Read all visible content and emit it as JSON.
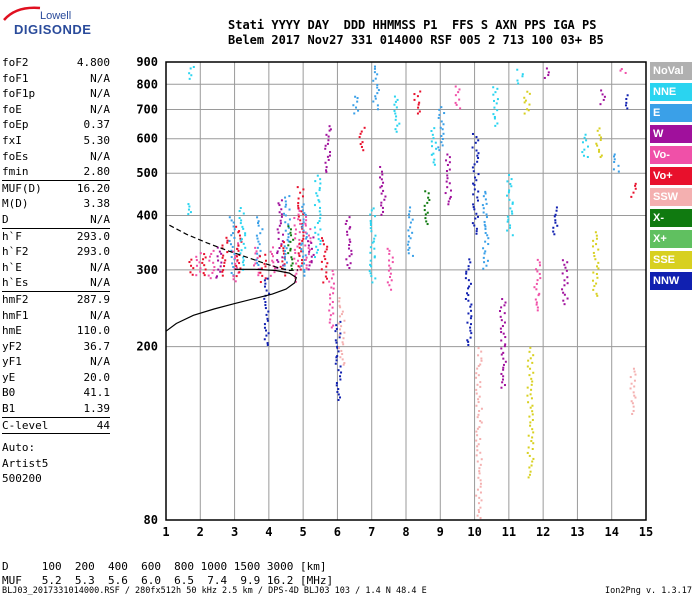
{
  "logo": {
    "line1": "Lowell",
    "line2": "DIGISONDE"
  },
  "header": {
    "line1": "Stati YYYY DAY  DDD HHMMSS P1  FFS S AXN PPS IGA PS",
    "line2": "Belem 2017 Nov27 331 014000 RSF 005 2 713 100 03+ B5"
  },
  "params": [
    {
      "name": "foF2",
      "value": "4.800"
    },
    {
      "name": "foF1",
      "value": "N/A"
    },
    {
      "name": "foF1p",
      "value": "N/A"
    },
    {
      "name": "foE",
      "value": "N/A"
    },
    {
      "name": "foEp",
      "value": "0.37"
    },
    {
      "name": "fxI",
      "value": "5.30"
    },
    {
      "name": "foEs",
      "value": "N/A"
    },
    {
      "name": "fmin",
      "value": "2.80",
      "sep": true
    },
    {
      "name": "MUF(D)",
      "value": "16.20"
    },
    {
      "name": "M(D)",
      "value": "3.38"
    },
    {
      "name": "D",
      "value": "N/A",
      "sep": true
    },
    {
      "name": "h`F",
      "value": "293.0"
    },
    {
      "name": "h`F2",
      "value": "293.0"
    },
    {
      "name": "h`E",
      "value": "N/A"
    },
    {
      "name": "h`Es",
      "value": "N/A",
      "sep": true
    },
    {
      "name": "hmF2",
      "value": "287.9"
    },
    {
      "name": "hmF1",
      "value": "N/A"
    },
    {
      "name": "hmE",
      "value": "110.0"
    },
    {
      "name": "yF2",
      "value": "36.7"
    },
    {
      "name": "yF1",
      "value": "N/A"
    },
    {
      "name": "yE",
      "value": "20.0"
    },
    {
      "name": "B0",
      "value": "41.1"
    },
    {
      "name": "B1",
      "value": "1.39",
      "sep": true
    },
    {
      "name": "C-level",
      "value": "44",
      "sep": true
    }
  ],
  "autoscaling": {
    "line1": "Auto:",
    "line2": "Artist5",
    "line3": "500200"
  },
  "muf_table": {
    "d_line": "D     100  200  400  600  800 1000 1500 3000 [km]",
    "muf_line": "MUF   5.2  5.3  5.6  6.0  6.5  7.4  9.9 16.2 [MHz]"
  },
  "footer": {
    "left": "BLJ03_2017331014000.RSF / 280fx512h 50 kHz 2.5 km / DPS-4D BLJ03 103 / 1.4 N 48.4 E",
    "right": "Ion2Png v. 1.3.17"
  },
  "legend": [
    {
      "label": "NoVal",
      "color": "#b0b0b0",
      "text_color": "#ffffff"
    },
    {
      "label": "NNE",
      "color": "#2ad4f0",
      "text_color": "#ffffff"
    },
    {
      "label": "E",
      "color": "#3aa0e8",
      "text_color": "#ffffff"
    },
    {
      "label": "W",
      "color": "#a0109c",
      "text_color": "#ffffff"
    },
    {
      "label": "Vo-",
      "color": "#f050a8",
      "text_color": "#ffffff"
    },
    {
      "label": "Vo+",
      "color": "#e8102c",
      "text_color": "#ffffff"
    },
    {
      "label": "SSW",
      "color": "#f4b0b0",
      "text_color": "#ffffff"
    },
    {
      "label": "X-",
      "color": "#107a10",
      "text_color": "#ffffff"
    },
    {
      "label": "X+",
      "color": "#60c060",
      "text_color": "#ffffff"
    },
    {
      "label": "SSE",
      "color": "#d8d020",
      "text_color": "#ffffff"
    },
    {
      "label": "NNW",
      "color": "#1020b0",
      "text_color": "#ffffff"
    }
  ],
  "chart_data": {
    "type": "scatter",
    "xlim": [
      1,
      15
    ],
    "ylim": [
      80,
      900
    ],
    "y_scale": "log",
    "x_ticks": [
      1,
      2,
      3,
      4,
      5,
      6,
      7,
      8,
      9,
      10,
      11,
      12,
      13,
      14,
      15
    ],
    "y_ticks": [
      80,
      200,
      300,
      400,
      500,
      600,
      700,
      800,
      900
    ],
    "grid": true,
    "profile": [
      {
        "x": 1.0,
        "y": 217
      },
      {
        "x": 1.3,
        "y": 226
      },
      {
        "x": 1.8,
        "y": 236
      },
      {
        "x": 2.4,
        "y": 244
      },
      {
        "x": 3.0,
        "y": 251
      },
      {
        "x": 3.6,
        "y": 258
      },
      {
        "x": 4.1,
        "y": 264
      },
      {
        "x": 4.5,
        "y": 271
      },
      {
        "x": 4.75,
        "y": 280
      },
      {
        "x": 4.8,
        "y": 288
      },
      {
        "x": 4.6,
        "y": 295
      },
      {
        "x": 4.2,
        "y": 299
      },
      {
        "x": 3.6,
        "y": 301
      },
      {
        "x": 3.0,
        "y": 301
      }
    ],
    "trace_dashed": [
      {
        "x": 1.1,
        "y": 380
      },
      {
        "x": 1.6,
        "y": 362
      },
      {
        "x": 2.2,
        "y": 346
      },
      {
        "x": 2.8,
        "y": 332
      },
      {
        "x": 3.4,
        "y": 320
      },
      {
        "x": 3.9,
        "y": 310
      },
      {
        "x": 4.3,
        "y": 303
      },
      {
        "x": 4.6,
        "y": 299
      },
      {
        "x": 4.85,
        "y": 300
      }
    ],
    "echo_clusters": [
      {
        "x": 1.7,
        "y0": 290,
        "y1": 320,
        "color": "#e8102c"
      },
      {
        "x": 1.7,
        "y0": 400,
        "y1": 430,
        "color": "#2ad4f0"
      },
      {
        "x": 1.7,
        "y0": 820,
        "y1": 890,
        "color": "#2ad4f0"
      },
      {
        "x": 1.9,
        "y0": 290,
        "y1": 330,
        "color": "#f050a8"
      },
      {
        "x": 2.1,
        "y0": 290,
        "y1": 330,
        "color": "#e8102c"
      },
      {
        "x": 2.3,
        "y0": 285,
        "y1": 335,
        "color": "#f050a8"
      },
      {
        "x": 2.5,
        "y0": 285,
        "y1": 340,
        "color": "#a0109c"
      },
      {
        "x": 2.7,
        "y0": 290,
        "y1": 360,
        "color": "#e8102c"
      },
      {
        "x": 2.9,
        "y0": 290,
        "y1": 400,
        "color": "#3aa0e8"
      },
      {
        "x": 3.0,
        "y0": 280,
        "y1": 350,
        "color": "#f050a8"
      },
      {
        "x": 3.1,
        "y0": 290,
        "y1": 380,
        "color": "#e8102c"
      },
      {
        "x": 3.2,
        "y0": 300,
        "y1": 420,
        "color": "#2ad4f0"
      },
      {
        "x": 3.6,
        "y0": 290,
        "y1": 340,
        "color": "#f050a8"
      },
      {
        "x": 3.7,
        "y0": 300,
        "y1": 400,
        "color": "#3aa0e8"
      },
      {
        "x": 3.8,
        "y0": 280,
        "y1": 330,
        "color": "#e8102c"
      },
      {
        "x": 3.9,
        "y0": 200,
        "y1": 290,
        "color": "#1020b0"
      },
      {
        "x": 4.1,
        "y0": 290,
        "y1": 340,
        "color": "#f050a8"
      },
      {
        "x": 4.3,
        "y0": 300,
        "y1": 440,
        "color": "#a0109c"
      },
      {
        "x": 4.4,
        "y0": 290,
        "y1": 350,
        "color": "#e8102c"
      },
      {
        "x": 4.5,
        "y0": 300,
        "y1": 450,
        "color": "#3aa0e8"
      },
      {
        "x": 4.6,
        "y0": 300,
        "y1": 380,
        "color": "#107a10"
      },
      {
        "x": 4.8,
        "y0": 280,
        "y1": 420,
        "color": "#f050a8"
      },
      {
        "x": 4.9,
        "y0": 300,
        "y1": 470,
        "color": "#e8102c"
      },
      {
        "x": 5.0,
        "y0": 290,
        "y1": 430,
        "color": "#3aa0e8"
      },
      {
        "x": 5.1,
        "y0": 300,
        "y1": 400,
        "color": "#f050a8"
      },
      {
        "x": 5.2,
        "y0": 300,
        "y1": 360,
        "color": "#a0109c"
      },
      {
        "x": 5.4,
        "y0": 320,
        "y1": 500,
        "color": "#2ad4f0"
      },
      {
        "x": 5.6,
        "y0": 280,
        "y1": 360,
        "color": "#e8102c"
      },
      {
        "x": 5.7,
        "y0": 500,
        "y1": 650,
        "color": "#a0109c"
      },
      {
        "x": 5.8,
        "y0": 220,
        "y1": 300,
        "color": "#f050a8"
      },
      {
        "x": 6.0,
        "y0": 150,
        "y1": 230,
        "color": "#1020b0"
      },
      {
        "x": 6.1,
        "y0": 180,
        "y1": 260,
        "color": "#f4b0b0"
      },
      {
        "x": 6.3,
        "y0": 300,
        "y1": 400,
        "color": "#a0109c"
      },
      {
        "x": 6.5,
        "y0": 680,
        "y1": 760,
        "color": "#3aa0e8"
      },
      {
        "x": 6.7,
        "y0": 560,
        "y1": 640,
        "color": "#e8102c"
      },
      {
        "x": 7.0,
        "y0": 280,
        "y1": 420,
        "color": "#2ad4f0"
      },
      {
        "x": 7.1,
        "y0": 700,
        "y1": 890,
        "color": "#3aa0e8"
      },
      {
        "x": 7.3,
        "y0": 400,
        "y1": 520,
        "color": "#a0109c"
      },
      {
        "x": 7.5,
        "y0": 270,
        "y1": 340,
        "color": "#f050a8"
      },
      {
        "x": 7.7,
        "y0": 620,
        "y1": 760,
        "color": "#2ad4f0"
      },
      {
        "x": 8.1,
        "y0": 320,
        "y1": 420,
        "color": "#3aa0e8"
      },
      {
        "x": 8.3,
        "y0": 680,
        "y1": 780,
        "color": "#e8102c"
      },
      {
        "x": 8.6,
        "y0": 380,
        "y1": 460,
        "color": "#107a10"
      },
      {
        "x": 8.8,
        "y0": 520,
        "y1": 640,
        "color": "#2ad4f0"
      },
      {
        "x": 9.0,
        "y0": 560,
        "y1": 720,
        "color": "#3aa0e8"
      },
      {
        "x": 9.2,
        "y0": 420,
        "y1": 560,
        "color": "#a0109c"
      },
      {
        "x": 9.5,
        "y0": 700,
        "y1": 800,
        "color": "#f050a8"
      },
      {
        "x": 9.8,
        "y0": 200,
        "y1": 320,
        "color": "#1020b0"
      },
      {
        "x": 10.0,
        "y0": 360,
        "y1": 620,
        "color": "#1020b0"
      },
      {
        "x": 10.1,
        "y0": 80,
        "y1": 200,
        "color": "#f4b0b0"
      },
      {
        "x": 10.3,
        "y0": 300,
        "y1": 460,
        "color": "#3aa0e8"
      },
      {
        "x": 10.6,
        "y0": 640,
        "y1": 800,
        "color": "#2ad4f0"
      },
      {
        "x": 10.8,
        "y0": 160,
        "y1": 260,
        "color": "#a0109c"
      },
      {
        "x": 11.0,
        "y0": 360,
        "y1": 500,
        "color": "#2ad4f0"
      },
      {
        "x": 11.3,
        "y0": 800,
        "y1": 870,
        "color": "#2ad4f0"
      },
      {
        "x": 11.5,
        "y0": 680,
        "y1": 780,
        "color": "#d8d020"
      },
      {
        "x": 11.6,
        "y0": 100,
        "y1": 200,
        "color": "#d8d020"
      },
      {
        "x": 11.8,
        "y0": 240,
        "y1": 320,
        "color": "#f050a8"
      },
      {
        "x": 12.1,
        "y0": 820,
        "y1": 880,
        "color": "#a0109c"
      },
      {
        "x": 12.3,
        "y0": 360,
        "y1": 420,
        "color": "#1020b0"
      },
      {
        "x": 12.6,
        "y0": 250,
        "y1": 320,
        "color": "#a0109c"
      },
      {
        "x": 13.2,
        "y0": 540,
        "y1": 620,
        "color": "#2ad4f0"
      },
      {
        "x": 13.5,
        "y0": 260,
        "y1": 370,
        "color": "#d8d020"
      },
      {
        "x": 13.6,
        "y0": 540,
        "y1": 640,
        "color": "#d8d020"
      },
      {
        "x": 13.7,
        "y0": 720,
        "y1": 780,
        "color": "#a0109c"
      },
      {
        "x": 14.1,
        "y0": 500,
        "y1": 560,
        "color": "#3aa0e8"
      },
      {
        "x": 14.3,
        "y0": 850,
        "y1": 880,
        "color": "#f050a8"
      },
      {
        "x": 14.4,
        "y0": 700,
        "y1": 760,
        "color": "#1020b0"
      },
      {
        "x": 14.6,
        "y0": 440,
        "y1": 480,
        "color": "#e8102c"
      },
      {
        "x": 14.6,
        "y0": 140,
        "y1": 180,
        "color": "#f4b0b0"
      }
    ]
  }
}
